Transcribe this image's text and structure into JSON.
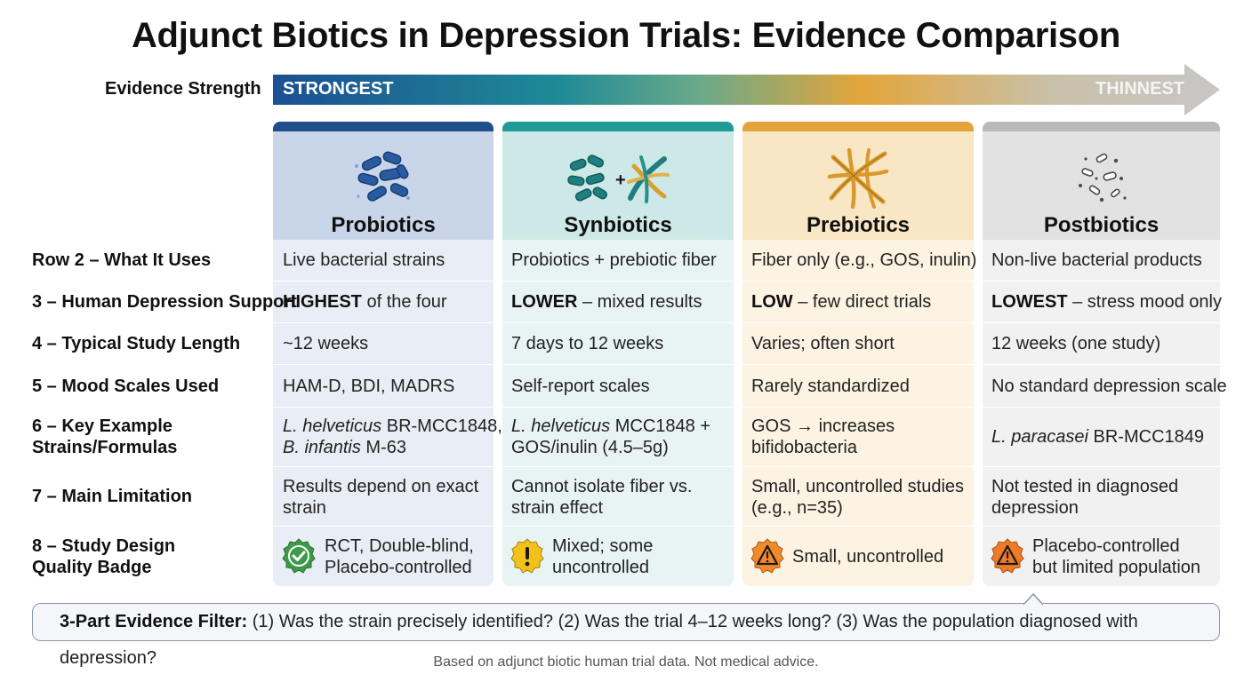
{
  "title": "Adjunct Biotics in Depression Trials: Evidence Comparison",
  "strength": {
    "label": "Evidence Strength",
    "strongest": "STRONGEST",
    "thinnest": "THINNEST"
  },
  "row_labels": {
    "r2": "Row 2 – What It Uses",
    "r3": "3 – Human Depression Support",
    "r4": "4 – Typical Study Length",
    "r5": "5 – Mood Scales Used",
    "r6a": "6 – Key Example",
    "r6b": "Strains/Formulas",
    "r7": "7 – Main Limitation",
    "r8a": "8 – Study Design",
    "r8b": "Quality Badge"
  },
  "columns": [
    {
      "name": "Probiotics",
      "icon": "rod-bacteria-cluster-icon",
      "colors": {
        "bar": "#1f4e8c",
        "head": "#c9d6ea",
        "body": "#e9eef6",
        "icon": "#2a5aa0"
      },
      "uses": "Live bacterial strains",
      "support_strong": "HIGHEST",
      "support_rest": " of the four",
      "length": "~12 weeks",
      "scales": "HAM-D, BDI, MADRS",
      "strain1_italic": "L. helveticus",
      "strain1_rest": " BR-MCC1848,",
      "strain2_italic": "B. infantis",
      "strain2_rest": " M-63",
      "limitation1": "Results depend on exact",
      "limitation2": "strain",
      "badge_icon": "check-badge-icon",
      "badge_color": "#3c9a48",
      "design1": "RCT, Double-blind,",
      "design2": "Placebo-controlled"
    },
    {
      "name": "Synbiotics",
      "icon": "bacteria-plus-fiber-icon",
      "colors": {
        "bar": "#1f9a96",
        "head": "#cde9e7",
        "body": "#e8f4f3",
        "icon": "#1f7f80"
      },
      "uses": "Probiotics + prebiotic fiber",
      "support_strong": "LOWER",
      "support_rest": " – mixed results",
      "length": "7 days to 12 weeks",
      "scales": "Self-report scales",
      "strain1_italic": "L. helveticus",
      "strain1_rest": " MCC1848 +",
      "strain2_italic": "",
      "strain2_rest": "GOS/inulin (4.5–5g)",
      "limitation1": "Cannot isolate fiber vs.",
      "limitation2": "strain effect",
      "badge_icon": "warning-exclamation-badge-icon",
      "badge_color": "#f2c21b",
      "design1": "Mixed; some",
      "design2": "uncontrolled"
    },
    {
      "name": "Prebiotics",
      "icon": "fiber-strands-icon",
      "colors": {
        "bar": "#e3a53b",
        "head": "#f8e6c4",
        "body": "#fcf3e3",
        "icon": "#d99a2b"
      },
      "uses": "Fiber only (e.g., GOS, inulin)",
      "support_strong": "LOW",
      "support_rest": " – few direct trials",
      "length": "Varies; often short",
      "scales": "Rarely standardized",
      "strain1_italic": "",
      "strain1_rest": "GOS → increases",
      "strain2_italic": "",
      "strain2_rest": "bifidobacteria",
      "limitation1": "Small, uncontrolled studies",
      "limitation2": "(e.g., n=35)",
      "badge_icon": "warning-triangle-badge-icon",
      "badge_color": "#f08a2c",
      "design1": "Small, uncontrolled",
      "design2": ""
    },
    {
      "name": "Postbiotics",
      "icon": "fragment-particles-icon",
      "colors": {
        "bar": "#b9b9b9",
        "head": "#e2e2e2",
        "body": "#f1f1f1",
        "icon": "#4a4a4a"
      },
      "uses": "Non-live bacterial products",
      "support_strong": "LOWEST",
      "support_rest": " – stress mood only",
      "length": "12 weeks (one study)",
      "scales": "No standard depression scale",
      "strain1_italic": "L. paracasei",
      "strain1_rest": " BR-MCC1849",
      "strain2_italic": "",
      "strain2_rest": "",
      "limitation1": "Not tested in diagnosed",
      "limitation2": "depression",
      "badge_icon": "warning-triangle-badge-icon",
      "badge_color": "#ef7a2a",
      "design1": "Placebo-controlled",
      "design2": "but limited population"
    }
  ],
  "filter": {
    "label": "3-Part Evidence Filter:",
    "text": " (1) Was the strain precisely identified?  (2) Was the trial 4–12 weeks long?  (3) Was the population diagnosed with depression?"
  },
  "footnote": "Based on adjunct biotic human trial data. Not medical advice."
}
